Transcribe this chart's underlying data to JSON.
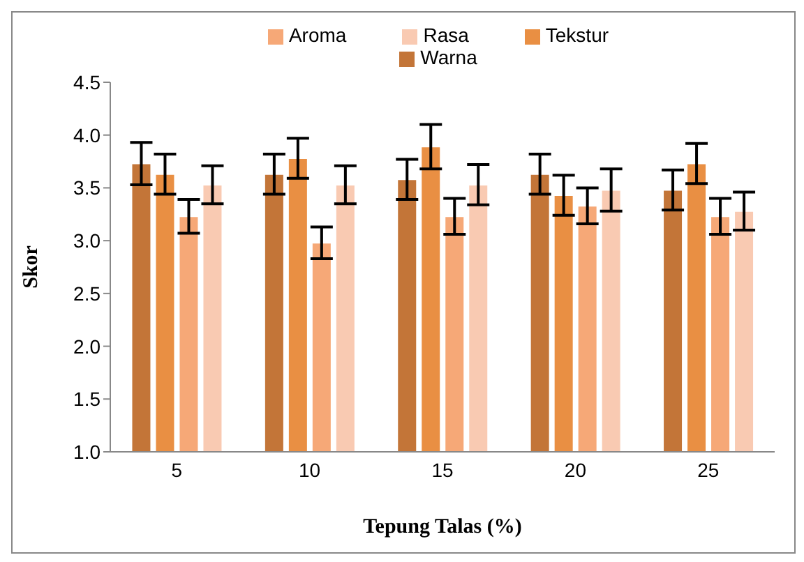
{
  "chart_data": {
    "type": "bar",
    "xlabel": "Tepung Talas (%)",
    "ylabel": "Skor",
    "categories": [
      "5",
      "10",
      "15",
      "20",
      "25"
    ],
    "series": [
      {
        "name": "Warna",
        "color": "#c37538",
        "values": [
          3.73,
          3.63,
          3.58,
          3.63,
          3.48
        ],
        "errors": [
          0.2,
          0.19,
          0.19,
          0.19,
          0.19
        ]
      },
      {
        "name": "Tekstur",
        "color": "#e98f43",
        "values": [
          3.63,
          3.78,
          3.89,
          3.43,
          3.73
        ],
        "errors": [
          0.19,
          0.19,
          0.21,
          0.19,
          0.19
        ]
      },
      {
        "name": "Aroma",
        "color": "#f6a877",
        "values": [
          3.23,
          2.98,
          3.23,
          3.33,
          3.23
        ],
        "errors": [
          0.16,
          0.15,
          0.17,
          0.17,
          0.17
        ]
      },
      {
        "name": "Rasa",
        "color": "#f9cab2",
        "values": [
          3.53,
          3.53,
          3.53,
          3.48,
          3.28
        ],
        "errors": [
          0.18,
          0.18,
          0.19,
          0.2,
          0.18
        ]
      }
    ],
    "ylim": [
      1.0,
      4.5
    ],
    "yticks": [
      {
        "value": 1,
        "label": "1.0"
      },
      {
        "value": 1.5,
        "label": "1.5"
      },
      {
        "value": 2,
        "label": "2.0"
      },
      {
        "value": 2.5,
        "label": "2.5"
      },
      {
        "value": 3,
        "label": "3.0"
      },
      {
        "value": 3.5,
        "label": "3.5"
      },
      {
        "value": 4,
        "label": "4.0"
      },
      {
        "value": 4.5,
        "label": "4.5"
      }
    ],
    "grid": false,
    "legend": "top"
  }
}
